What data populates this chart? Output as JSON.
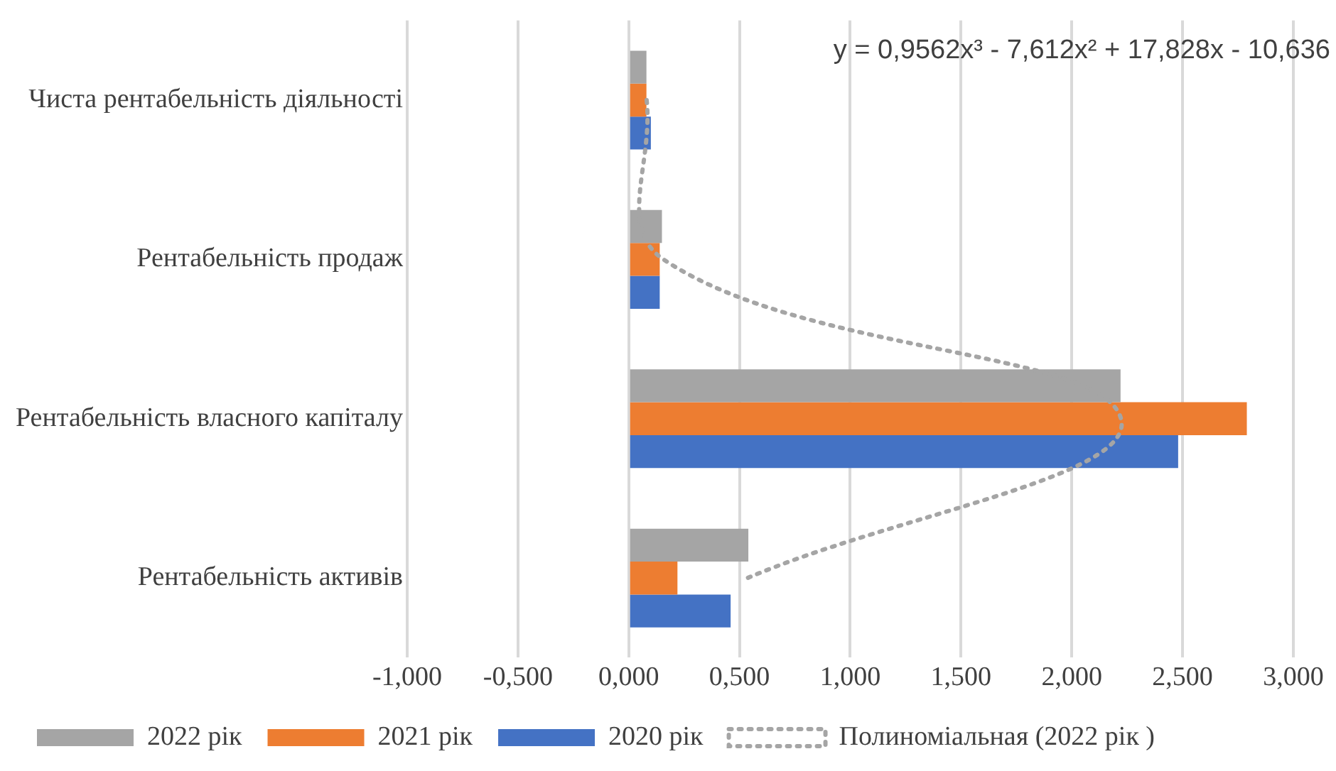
{
  "chart_data": {
    "type": "bar",
    "orientation": "horizontal",
    "categories": [
      "Чиста рентабельність діяльності",
      "Рентабельність продаж",
      "Рентабельність власного капіталу",
      "Рентабельність активів"
    ],
    "series": [
      {
        "name": "2022 рік",
        "color": "#a5a5a5",
        "values": [
          0.08,
          0.15,
          2.22,
          0.54
        ]
      },
      {
        "name": "2021 рік",
        "color": "#ed7d31",
        "values": [
          0.08,
          0.14,
          2.79,
          0.22
        ]
      },
      {
        "name": "2020 рік",
        "color": "#4472c4",
        "values": [
          0.1,
          0.14,
          2.48,
          0.46
        ]
      },
      {
        "name": "Полиноміальная (2022 рік )",
        "type": "line",
        "color": "#a5a5a5",
        "line_style": "dotted",
        "marker": "none",
        "values": [
          0.081,
          0.157,
          2.222,
          0.536
        ]
      }
    ],
    "xlim": [
      -1,
      3
    ],
    "xticks": [
      {
        "value": -1,
        "label": "-1,000"
      },
      {
        "value": -0.5,
        "label": "-0,500"
      },
      {
        "value": 0,
        "label": "0,000"
      },
      {
        "value": 0.5,
        "label": "0,500"
      },
      {
        "value": 1,
        "label": "1,000"
      },
      {
        "value": 1.5,
        "label": "1,500"
      },
      {
        "value": 2,
        "label": "2,000"
      },
      {
        "value": 2.5,
        "label": "2,500"
      },
      {
        "value": 3,
        "label": "3,000"
      }
    ],
    "grid": "x",
    "legend": "bottom",
    "annotations": [
      "y = 0,9562x³ - 7,612x² + 17,828x - 10,636"
    ]
  }
}
